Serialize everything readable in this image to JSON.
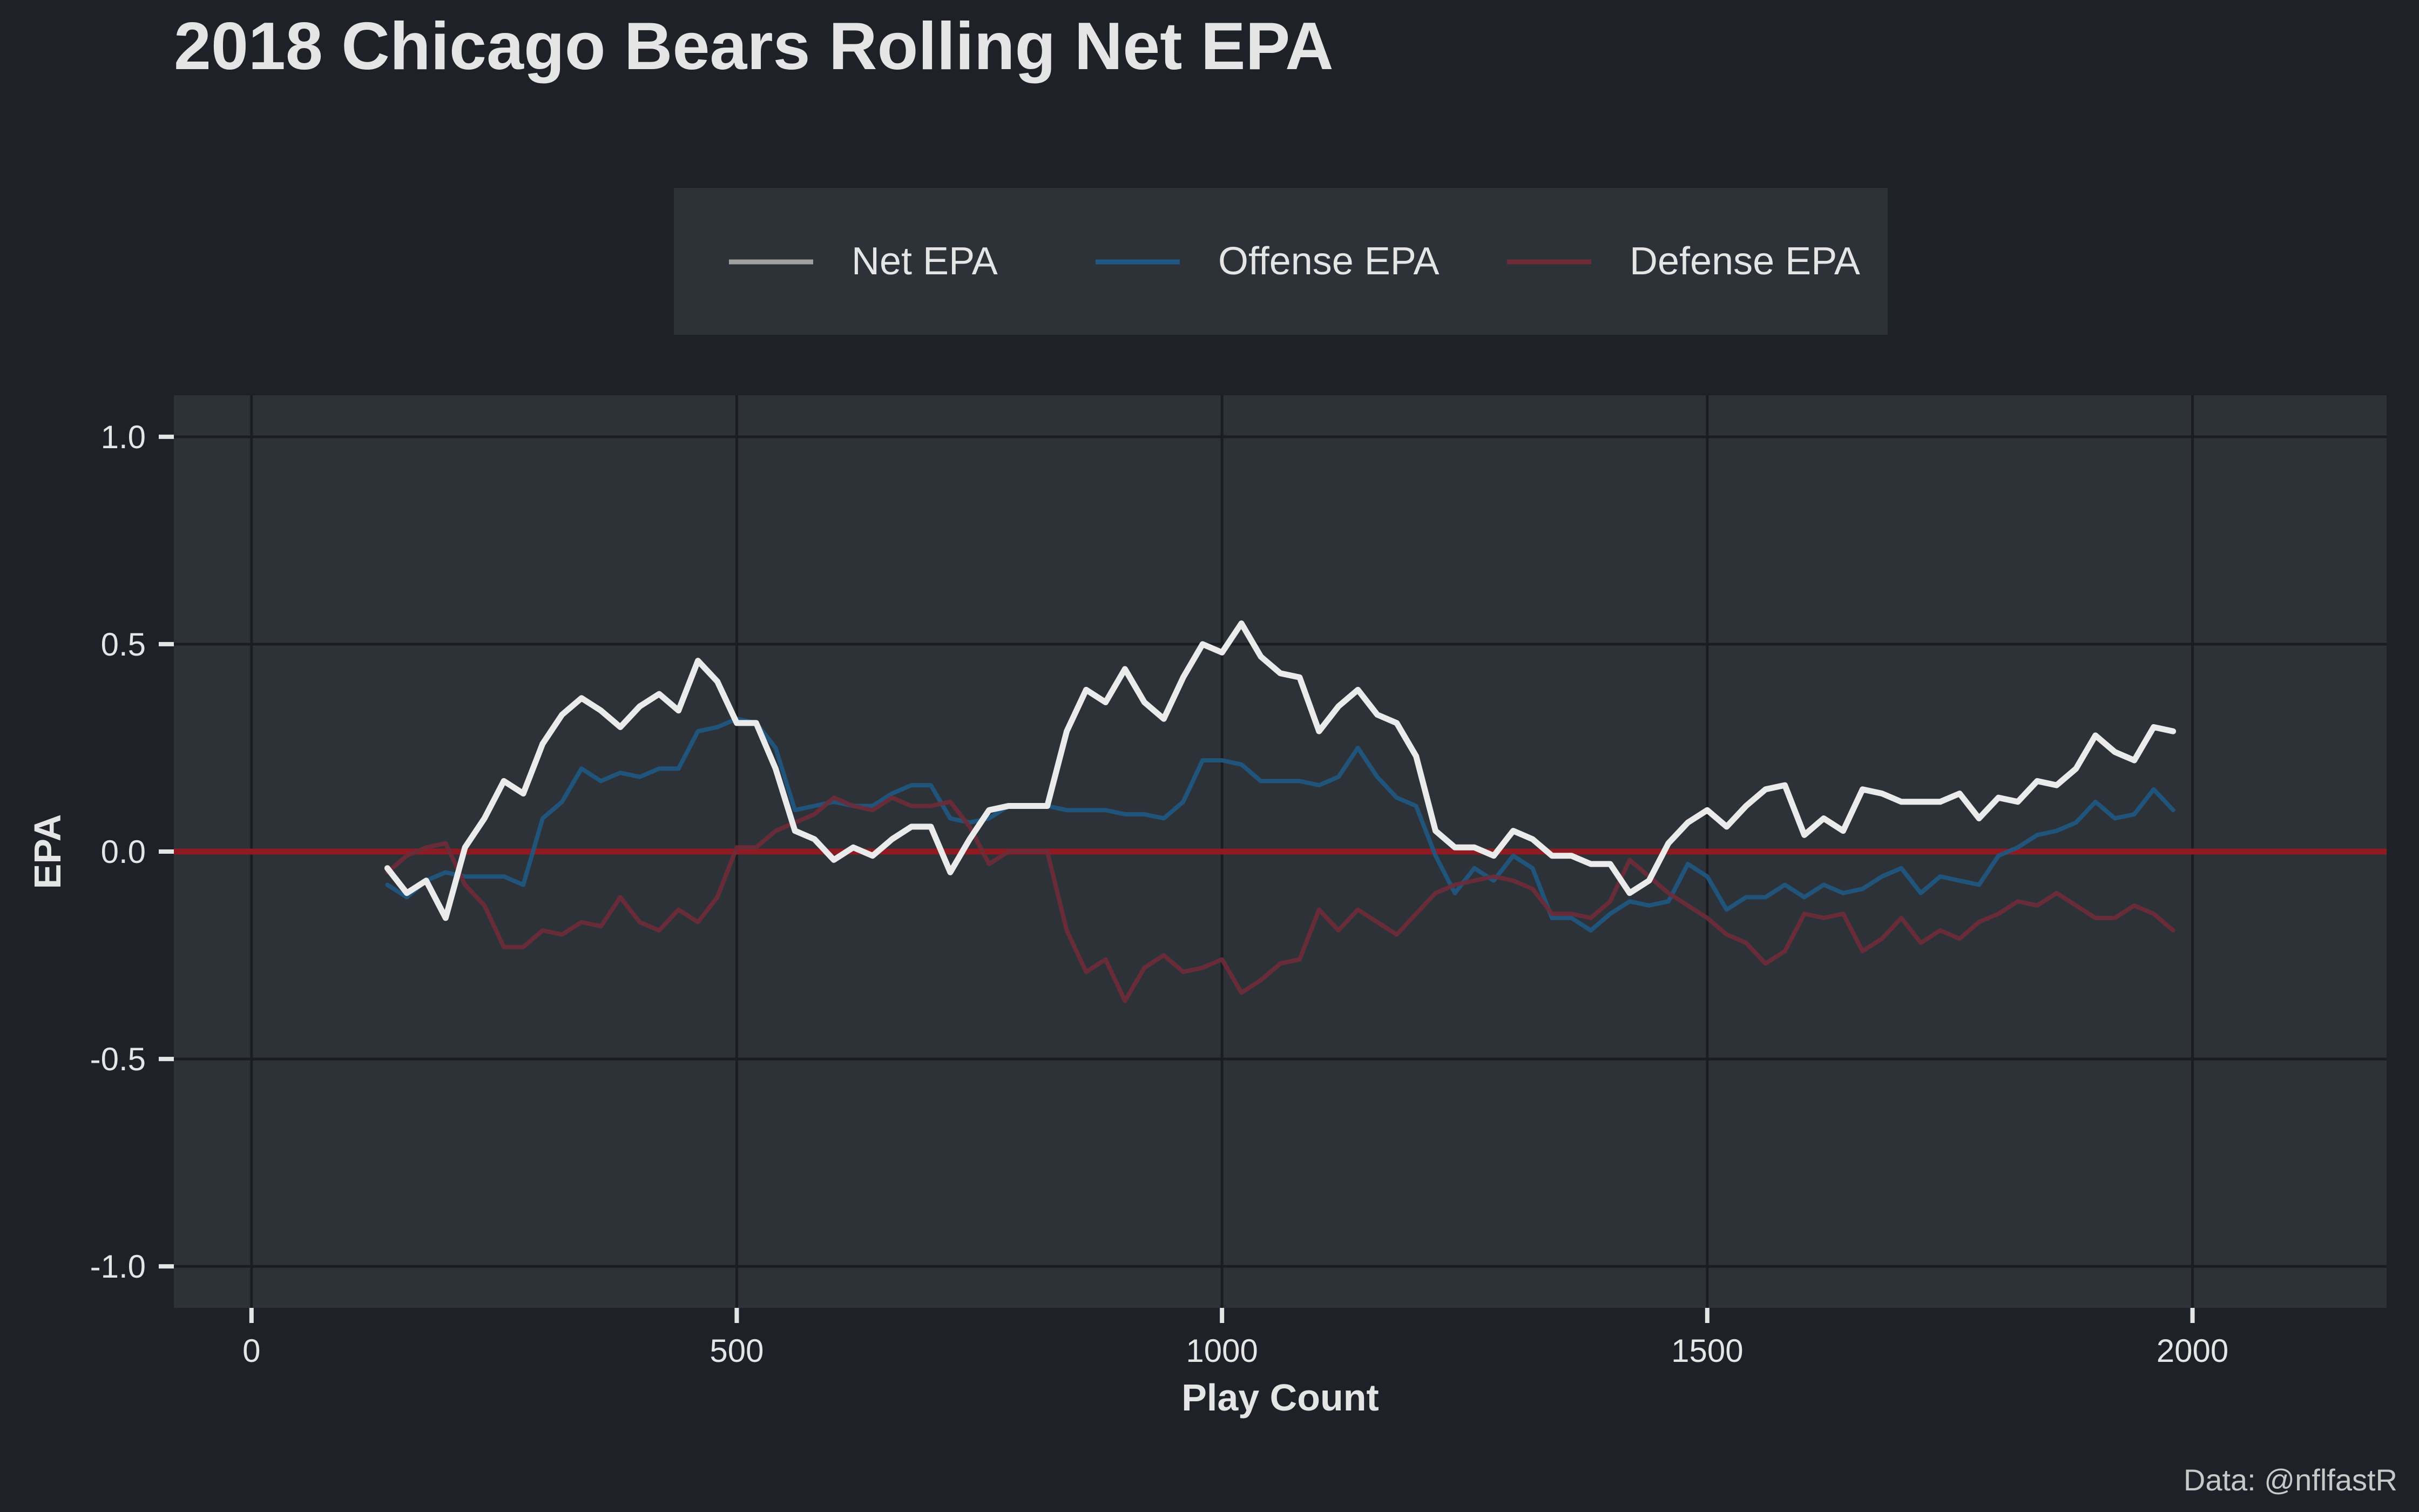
{
  "chart_data": {
    "type": "line",
    "title": "2018 Chicago Bears Rolling Net EPA",
    "xlabel": "Play Count",
    "ylabel": "EPA",
    "caption": "Data: @nflfastR",
    "xlim": [
      -80,
      2200
    ],
    "ylim": [
      -1.1,
      1.1
    ],
    "x_ticks": [
      0,
      500,
      1000,
      1500,
      2000
    ],
    "x_tick_labels": [
      "0",
      "500",
      "1000",
      "1500",
      "2000"
    ],
    "y_ticks": [
      -1.0,
      -0.5,
      0.0,
      0.5,
      1.0
    ],
    "y_tick_labels": [
      "-1.0",
      "-0.5",
      "0.0",
      "0.5",
      "1.0"
    ],
    "grid": true,
    "legend_position": "top",
    "reference_line": {
      "y": 0,
      "color": "#8e1b22"
    },
    "colors": {
      "background": "#1e2128",
      "panel": "#2d3238",
      "grid": "#1b1d21",
      "text": "#e5e5e5",
      "legend_bg": "#2d3238"
    },
    "series": [
      {
        "name": "Offense EPA",
        "color": "#1f5882",
        "opacity": 0.9,
        "points": [
          [
            140,
            -0.08
          ],
          [
            160,
            -0.11
          ],
          [
            180,
            -0.07
          ],
          [
            200,
            -0.05
          ],
          [
            220,
            -0.06
          ],
          [
            240,
            -0.06
          ],
          [
            260,
            -0.06
          ],
          [
            280,
            -0.08
          ],
          [
            300,
            0.08
          ],
          [
            320,
            0.12
          ],
          [
            340,
            0.2
          ],
          [
            360,
            0.17
          ],
          [
            380,
            0.19
          ],
          [
            400,
            0.18
          ],
          [
            420,
            0.2
          ],
          [
            440,
            0.2
          ],
          [
            460,
            0.29
          ],
          [
            480,
            0.3
          ],
          [
            500,
            0.32
          ],
          [
            520,
            0.31
          ],
          [
            540,
            0.25
          ],
          [
            560,
            0.1
          ],
          [
            580,
            0.11
          ],
          [
            600,
            0.12
          ],
          [
            620,
            0.11
          ],
          [
            640,
            0.11
          ],
          [
            660,
            0.14
          ],
          [
            680,
            0.16
          ],
          [
            700,
            0.16
          ],
          [
            720,
            0.08
          ],
          [
            740,
            0.07
          ],
          [
            760,
            0.08
          ],
          [
            780,
            0.11
          ],
          [
            800,
            0.11
          ],
          [
            820,
            0.11
          ],
          [
            840,
            0.1
          ],
          [
            860,
            0.1
          ],
          [
            880,
            0.1
          ],
          [
            900,
            0.09
          ],
          [
            920,
            0.09
          ],
          [
            940,
            0.08
          ],
          [
            960,
            0.12
          ],
          [
            980,
            0.22
          ],
          [
            1000,
            0.22
          ],
          [
            1020,
            0.21
          ],
          [
            1040,
            0.17
          ],
          [
            1060,
            0.17
          ],
          [
            1080,
            0.17
          ],
          [
            1100,
            0.16
          ],
          [
            1120,
            0.18
          ],
          [
            1140,
            0.25
          ],
          [
            1160,
            0.18
          ],
          [
            1180,
            0.13
          ],
          [
            1200,
            0.11
          ],
          [
            1220,
            -0.01
          ],
          [
            1240,
            -0.1
          ],
          [
            1260,
            -0.04
          ],
          [
            1280,
            -0.07
          ],
          [
            1300,
            -0.01
          ],
          [
            1320,
            -0.04
          ],
          [
            1340,
            -0.16
          ],
          [
            1360,
            -0.16
          ],
          [
            1380,
            -0.19
          ],
          [
            1400,
            -0.15
          ],
          [
            1420,
            -0.12
          ],
          [
            1440,
            -0.13
          ],
          [
            1460,
            -0.12
          ],
          [
            1480,
            -0.03
          ],
          [
            1500,
            -0.06
          ],
          [
            1520,
            -0.14
          ],
          [
            1540,
            -0.11
          ],
          [
            1560,
            -0.11
          ],
          [
            1580,
            -0.08
          ],
          [
            1600,
            -0.11
          ],
          [
            1620,
            -0.08
          ],
          [
            1640,
            -0.1
          ],
          [
            1660,
            -0.09
          ],
          [
            1680,
            -0.06
          ],
          [
            1700,
            -0.04
          ],
          [
            1720,
            -0.1
          ],
          [
            1740,
            -0.06
          ],
          [
            1760,
            -0.07
          ],
          [
            1780,
            -0.08
          ],
          [
            1800,
            -0.01
          ],
          [
            1820,
            0.01
          ],
          [
            1840,
            0.04
          ],
          [
            1860,
            0.05
          ],
          [
            1880,
            0.07
          ],
          [
            1900,
            0.12
          ],
          [
            1920,
            0.08
          ],
          [
            1940,
            0.09
          ],
          [
            1960,
            0.15
          ],
          [
            1980,
            0.1
          ]
        ]
      },
      {
        "name": "Defense EPA",
        "color": "#6e2b38",
        "opacity": 0.9,
        "points": [
          [
            140,
            -0.05
          ],
          [
            160,
            -0.01
          ],
          [
            180,
            0.01
          ],
          [
            200,
            0.02
          ],
          [
            220,
            -0.08
          ],
          [
            240,
            -0.13
          ],
          [
            260,
            -0.23
          ],
          [
            280,
            -0.23
          ],
          [
            300,
            -0.19
          ],
          [
            320,
            -0.2
          ],
          [
            340,
            -0.17
          ],
          [
            360,
            -0.18
          ],
          [
            380,
            -0.11
          ],
          [
            400,
            -0.17
          ],
          [
            420,
            -0.19
          ],
          [
            440,
            -0.14
          ],
          [
            460,
            -0.17
          ],
          [
            480,
            -0.11
          ],
          [
            500,
            0.01
          ],
          [
            520,
            0.01
          ],
          [
            540,
            0.05
          ],
          [
            560,
            0.07
          ],
          [
            580,
            0.09
          ],
          [
            600,
            0.13
          ],
          [
            620,
            0.11
          ],
          [
            640,
            0.1
          ],
          [
            660,
            0.13
          ],
          [
            680,
            0.11
          ],
          [
            700,
            0.11
          ],
          [
            720,
            0.12
          ],
          [
            740,
            0.06
          ],
          [
            760,
            -0.03
          ],
          [
            780,
            0.0
          ],
          [
            800,
            0.0
          ],
          [
            820,
            0.0
          ],
          [
            840,
            -0.19
          ],
          [
            860,
            -0.29
          ],
          [
            880,
            -0.26
          ],
          [
            900,
            -0.36
          ],
          [
            920,
            -0.28
          ],
          [
            940,
            -0.25
          ],
          [
            960,
            -0.29
          ],
          [
            980,
            -0.28
          ],
          [
            1000,
            -0.26
          ],
          [
            1020,
            -0.34
          ],
          [
            1040,
            -0.31
          ],
          [
            1060,
            -0.27
          ],
          [
            1080,
            -0.26
          ],
          [
            1100,
            -0.14
          ],
          [
            1120,
            -0.19
          ],
          [
            1140,
            -0.14
          ],
          [
            1160,
            -0.17
          ],
          [
            1180,
            -0.2
          ],
          [
            1200,
            -0.15
          ],
          [
            1220,
            -0.1
          ],
          [
            1240,
            -0.08
          ],
          [
            1260,
            -0.07
          ],
          [
            1280,
            -0.06
          ],
          [
            1300,
            -0.07
          ],
          [
            1320,
            -0.09
          ],
          [
            1340,
            -0.15
          ],
          [
            1360,
            -0.15
          ],
          [
            1380,
            -0.16
          ],
          [
            1400,
            -0.12
          ],
          [
            1420,
            -0.02
          ],
          [
            1440,
            -0.06
          ],
          [
            1460,
            -0.1
          ],
          [
            1480,
            -0.13
          ],
          [
            1500,
            -0.16
          ],
          [
            1520,
            -0.2
          ],
          [
            1540,
            -0.22
          ],
          [
            1560,
            -0.27
          ],
          [
            1580,
            -0.24
          ],
          [
            1600,
            -0.15
          ],
          [
            1620,
            -0.16
          ],
          [
            1640,
            -0.15
          ],
          [
            1660,
            -0.24
          ],
          [
            1680,
            -0.21
          ],
          [
            1700,
            -0.16
          ],
          [
            1720,
            -0.22
          ],
          [
            1740,
            -0.19
          ],
          [
            1760,
            -0.21
          ],
          [
            1780,
            -0.17
          ],
          [
            1800,
            -0.15
          ],
          [
            1820,
            -0.12
          ],
          [
            1840,
            -0.13
          ],
          [
            1860,
            -0.1
          ],
          [
            1880,
            -0.13
          ],
          [
            1900,
            -0.16
          ],
          [
            1920,
            -0.16
          ],
          [
            1940,
            -0.13
          ],
          [
            1960,
            -0.15
          ],
          [
            1980,
            -0.19
          ]
        ]
      },
      {
        "name": "Net EPA",
        "color": "#ebebeb",
        "opacity": 1,
        "points": [
          [
            140,
            -0.04
          ],
          [
            160,
            -0.1
          ],
          [
            180,
            -0.07
          ],
          [
            200,
            -0.16
          ],
          [
            220,
            0.01
          ],
          [
            240,
            0.08
          ],
          [
            260,
            0.17
          ],
          [
            280,
            0.14
          ],
          [
            300,
            0.26
          ],
          [
            320,
            0.33
          ],
          [
            340,
            0.37
          ],
          [
            360,
            0.34
          ],
          [
            380,
            0.3
          ],
          [
            400,
            0.35
          ],
          [
            420,
            0.38
          ],
          [
            440,
            0.34
          ],
          [
            460,
            0.46
          ],
          [
            480,
            0.41
          ],
          [
            500,
            0.31
          ],
          [
            520,
            0.31
          ],
          [
            540,
            0.2
          ],
          [
            560,
            0.05
          ],
          [
            580,
            0.03
          ],
          [
            600,
            -0.02
          ],
          [
            620,
            0.01
          ],
          [
            640,
            -0.01
          ],
          [
            660,
            0.03
          ],
          [
            680,
            0.06
          ],
          [
            700,
            0.06
          ],
          [
            720,
            -0.05
          ],
          [
            740,
            0.03
          ],
          [
            760,
            0.1
          ],
          [
            780,
            0.11
          ],
          [
            800,
            0.11
          ],
          [
            820,
            0.11
          ],
          [
            840,
            0.29
          ],
          [
            860,
            0.39
          ],
          [
            880,
            0.36
          ],
          [
            900,
            0.44
          ],
          [
            920,
            0.36
          ],
          [
            940,
            0.32
          ],
          [
            960,
            0.42
          ],
          [
            980,
            0.5
          ],
          [
            1000,
            0.48
          ],
          [
            1020,
            0.55
          ],
          [
            1040,
            0.47
          ],
          [
            1060,
            0.43
          ],
          [
            1080,
            0.42
          ],
          [
            1100,
            0.29
          ],
          [
            1120,
            0.35
          ],
          [
            1140,
            0.39
          ],
          [
            1160,
            0.33
          ],
          [
            1180,
            0.31
          ],
          [
            1200,
            0.23
          ],
          [
            1220,
            0.05
          ],
          [
            1240,
            0.01
          ],
          [
            1260,
            0.01
          ],
          [
            1280,
            -0.01
          ],
          [
            1300,
            0.05
          ],
          [
            1320,
            0.03
          ],
          [
            1340,
            -0.01
          ],
          [
            1360,
            -0.01
          ],
          [
            1380,
            -0.03
          ],
          [
            1400,
            -0.03
          ],
          [
            1420,
            -0.1
          ],
          [
            1440,
            -0.07
          ],
          [
            1460,
            0.02
          ],
          [
            1480,
            0.07
          ],
          [
            1500,
            0.1
          ],
          [
            1520,
            0.06
          ],
          [
            1540,
            0.11
          ],
          [
            1560,
            0.15
          ],
          [
            1580,
            0.16
          ],
          [
            1600,
            0.04
          ],
          [
            1620,
            0.08
          ],
          [
            1640,
            0.05
          ],
          [
            1660,
            0.15
          ],
          [
            1680,
            0.14
          ],
          [
            1700,
            0.12
          ],
          [
            1720,
            0.12
          ],
          [
            1740,
            0.12
          ],
          [
            1760,
            0.14
          ],
          [
            1780,
            0.08
          ],
          [
            1800,
            0.13
          ],
          [
            1820,
            0.12
          ],
          [
            1840,
            0.17
          ],
          [
            1860,
            0.16
          ],
          [
            1880,
            0.2
          ],
          [
            1900,
            0.28
          ],
          [
            1920,
            0.24
          ],
          [
            1940,
            0.22
          ],
          [
            1960,
            0.3
          ],
          [
            1980,
            0.29
          ]
        ]
      }
    ],
    "legend_order": [
      "Net EPA",
      "Offense EPA",
      "Defense EPA"
    ],
    "legend_colors": [
      "#a0a0a0",
      "#1f5882",
      "#6e2b38"
    ]
  }
}
